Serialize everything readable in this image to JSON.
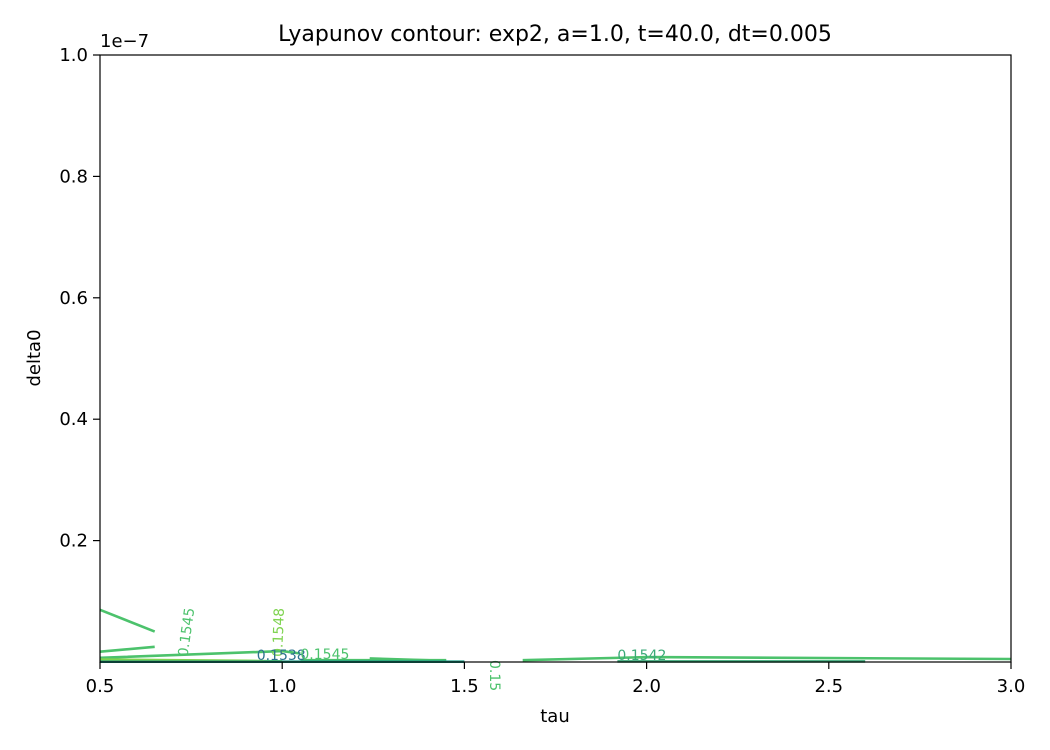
{
  "chart_data": {
    "type": "contour",
    "title": "Lyapunov contour: exp2, a=1.0, t=40.0, dt=0.005",
    "xlabel": "tau",
    "ylabel": "delta0",
    "xlim": [
      0.5,
      3.0
    ],
    "ylim": [
      0,
      1.0
    ],
    "y_offset_text": "1e−7",
    "x_ticks": [
      0.5,
      1.0,
      1.5,
      2.0,
      2.5,
      3.0
    ],
    "x_tick_labels": [
      "0.5",
      "1.0",
      "1.5",
      "2.0",
      "2.5",
      "3.0"
    ],
    "y_ticks": [
      0.2,
      0.4,
      0.6,
      0.8,
      1.0
    ],
    "y_tick_labels": [
      "0.2",
      "0.4",
      "0.6",
      "0.8",
      "1.0"
    ],
    "grid": false,
    "contour_lines": [
      {
        "color": "#4cc26c",
        "points": [
          [
            0.5,
            0.086
          ],
          [
            0.65,
            0.05
          ]
        ]
      },
      {
        "color": "#4cc26c",
        "points": [
          [
            0.5,
            0.017
          ],
          [
            0.65,
            0.025
          ]
        ]
      },
      {
        "color": "#4cc26c",
        "points": [
          [
            0.5,
            0.007
          ],
          [
            1.0,
            0.018
          ],
          [
            1.05,
            0.014
          ]
        ]
      },
      {
        "color": "#4cc26c",
        "points": [
          [
            1.05,
            0.003
          ],
          [
            1.45,
            0.003
          ]
        ]
      },
      {
        "color": "#4cc26c",
        "points": [
          [
            1.24,
            0.006
          ],
          [
            1.45,
            0.002
          ]
        ]
      },
      {
        "color": "#4cc26c",
        "points": [
          [
            1.66,
            0.003
          ],
          [
            2.0,
            0.008
          ],
          [
            3.0,
            0.005
          ]
        ]
      },
      {
        "color": "#3aaa78",
        "points": [
          [
            1.92,
            0.001
          ],
          [
            2.6,
            0.001
          ]
        ]
      },
      {
        "color": "#7ed34f",
        "points": [
          [
            0.5,
            0.004
          ],
          [
            0.9,
            0.002
          ],
          [
            1.0,
            0.001
          ]
        ]
      },
      {
        "color": "#b5de2b",
        "points": [
          [
            0.5,
            0.001
          ],
          [
            0.95,
            0.001
          ]
        ]
      },
      {
        "color": "#1f9e89",
        "points": [
          [
            0.5,
            0.0005
          ],
          [
            1.5,
            0.0005
          ]
        ]
      }
    ],
    "contour_labels": [
      {
        "text": "0.1545",
        "x": 0.74,
        "y": 0.005,
        "rotation": -82,
        "color": "#4cc26c"
      },
      {
        "text": "0.1548",
        "x": 1.0,
        "y": 0.005,
        "rotation": -88,
        "color": "#7ed34f"
      },
      {
        "text": "0.1538",
        "x": 0.93,
        "y": 0.0003,
        "rotation": 0,
        "color": "#2c728e"
      },
      {
        "text": "0.1545",
        "x": 1.05,
        "y": 0.0015,
        "rotation": 0,
        "color": "#4cc26c"
      },
      {
        "text": "0.15",
        "x": 1.57,
        "y": 0.0,
        "rotation": 90,
        "color": "#4cc26c"
      },
      {
        "text": "0.1542",
        "x": 1.92,
        "y": 0.0003,
        "rotation": 0,
        "color": "#3aaa78"
      }
    ]
  }
}
